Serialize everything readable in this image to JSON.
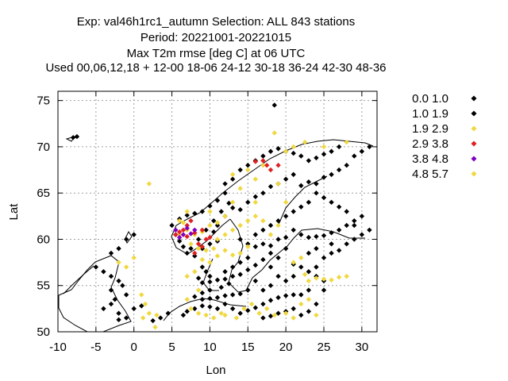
{
  "chart_data": {
    "type": "scatter",
    "title_lines": [
      "Exp: val46h1rc1_autumn   Selection: ALL    843 stations",
      "Period: 20221001-20221015",
      "Max T2m rmse [deg C] at  06 UTC",
      "Used  00,06,12,18  + 12-00 18-06 24-12 30-18 36-24 42-30 48-36"
    ],
    "xlabel": "Lon",
    "ylabel": "Lat",
    "xlim": [
      -10,
      32
    ],
    "ylim": [
      50,
      76
    ],
    "xticks": [
      -10,
      -5,
      0,
      5,
      10,
      15,
      20,
      25,
      30
    ],
    "yticks": [
      50,
      55,
      60,
      65,
      70,
      75
    ],
    "grid": true,
    "legend_position": "right",
    "series": [
      {
        "name": "0.0 1.0",
        "color": "#000000",
        "points": []
      },
      {
        "name": "1.0 1.9",
        "color": "#000000",
        "points": [
          [
            7,
            58.5
          ],
          [
            8,
            58.2
          ],
          [
            9,
            59
          ],
          [
            10,
            59.5
          ],
          [
            11,
            59.8
          ],
          [
            10.5,
            60.8
          ],
          [
            11,
            61.5
          ],
          [
            12,
            62.5
          ],
          [
            13,
            63.4
          ],
          [
            14,
            63.2
          ],
          [
            15,
            64
          ],
          [
            16,
            64.6
          ],
          [
            17,
            65
          ],
          [
            18,
            65.7
          ],
          [
            19,
            66
          ],
          [
            20,
            66.5
          ],
          [
            21,
            67
          ],
          [
            22,
            65.8
          ],
          [
            23,
            66.2
          ],
          [
            24,
            66
          ],
          [
            25,
            66.7
          ],
          [
            26,
            67
          ],
          [
            27,
            67.5
          ],
          [
            28,
            68
          ],
          [
            29,
            69
          ],
          [
            30,
            69.5
          ],
          [
            31,
            70
          ],
          [
            27,
            70
          ],
          [
            26,
            69.5
          ],
          [
            25,
            69.2
          ],
          [
            24,
            68.8
          ],
          [
            23,
            68.5
          ],
          [
            22,
            69
          ],
          [
            21,
            69.3
          ],
          [
            20,
            69.5
          ],
          [
            19,
            69.8
          ],
          [
            18,
            69.5
          ],
          [
            17,
            69
          ],
          [
            16,
            68.5
          ],
          [
            15,
            68
          ],
          [
            14,
            67.5
          ],
          [
            13,
            66.5
          ],
          [
            12,
            66
          ],
          [
            12,
            65
          ],
          [
            11,
            64.2
          ],
          [
            10,
            63.6
          ],
          [
            9,
            63
          ],
          [
            8,
            62.8
          ],
          [
            7,
            62.6
          ],
          [
            6,
            62.2
          ],
          [
            5,
            61.5
          ],
          [
            5.5,
            60.5
          ],
          [
            6,
            59.8
          ],
          [
            6.5,
            59.2
          ],
          [
            7.5,
            59
          ],
          [
            8.5,
            60
          ],
          [
            9.5,
            61
          ],
          [
            10.5,
            62
          ],
          [
            11.5,
            63
          ],
          [
            12.5,
            63.9
          ],
          [
            14,
            60
          ],
          [
            15,
            59.5
          ],
          [
            16,
            59.2
          ],
          [
            17,
            59.5
          ],
          [
            18,
            59.3
          ],
          [
            19,
            60
          ],
          [
            20,
            60.2
          ],
          [
            21,
            61
          ],
          [
            22,
            60.5
          ],
          [
            23,
            60.2
          ],
          [
            24,
            60.3
          ],
          [
            25,
            60.4
          ],
          [
            26,
            60.7
          ],
          [
            27,
            61
          ],
          [
            28,
            61.5
          ],
          [
            29,
            62
          ],
          [
            30,
            62.5
          ],
          [
            28,
            63
          ],
          [
            27,
            63.5
          ],
          [
            26,
            64
          ],
          [
            25,
            64.5
          ],
          [
            24,
            65
          ],
          [
            23,
            64
          ],
          [
            22,
            63.5
          ],
          [
            21,
            63
          ],
          [
            20,
            62.5
          ],
          [
            19,
            62
          ],
          [
            18,
            61.5
          ],
          [
            17,
            61
          ],
          [
            16,
            60.5
          ],
          [
            15,
            58
          ],
          [
            14,
            57.5
          ],
          [
            13,
            57
          ],
          [
            12,
            56.5
          ],
          [
            13,
            56
          ],
          [
            14,
            56.2
          ],
          [
            15,
            56.7
          ],
          [
            16,
            57.2
          ],
          [
            17,
            57.8
          ],
          [
            18,
            58.5
          ],
          [
            9,
            57
          ],
          [
            9.5,
            56.5
          ],
          [
            10,
            56
          ],
          [
            8.5,
            55.8
          ],
          [
            9,
            55.3
          ],
          [
            10,
            55.4
          ],
          [
            11,
            55.6
          ],
          [
            12,
            55.7
          ],
          [
            12.5,
            55.2
          ],
          [
            11.5,
            54.8
          ],
          [
            10,
            54.5
          ],
          [
            9,
            54.2
          ],
          [
            8,
            53.8
          ],
          [
            9,
            53.5
          ],
          [
            10,
            53.6
          ],
          [
            11,
            53.7
          ],
          [
            12,
            53.9
          ],
          [
            13,
            54
          ],
          [
            14,
            54.1
          ],
          [
            12,
            53
          ],
          [
            11,
            52.5
          ],
          [
            10,
            52.7
          ],
          [
            9,
            52.8
          ],
          [
            8,
            52.5
          ],
          [
            7,
            52.2
          ],
          [
            6.5,
            51.8
          ],
          [
            13,
            52.5
          ],
          [
            14,
            52
          ],
          [
            15,
            52.3
          ],
          [
            16,
            52.6
          ],
          [
            17,
            53
          ],
          [
            18,
            53.4
          ],
          [
            19,
            53.7
          ],
          [
            20,
            53.9
          ],
          [
            21,
            54
          ],
          [
            22,
            54
          ],
          [
            23,
            54.5
          ],
          [
            21,
            52.5
          ],
          [
            20,
            52.2
          ],
          [
            19,
            52
          ],
          [
            18,
            51.7
          ],
          [
            17,
            51.5
          ],
          [
            22,
            51.8
          ],
          [
            23,
            52.2
          ],
          [
            24,
            53
          ],
          [
            25,
            54.5
          ],
          [
            25,
            55.5
          ],
          [
            24,
            56
          ],
          [
            23,
            56.5
          ],
          [
            22,
            57
          ],
          [
            21,
            57.3
          ],
          [
            24,
            57
          ],
          [
            25,
            58
          ],
          [
            26,
            58.5
          ],
          [
            27,
            58.8
          ],
          [
            24,
            59
          ],
          [
            23,
            58.5
          ],
          [
            26,
            59.5
          ],
          [
            28,
            59.5
          ],
          [
            29,
            60
          ],
          [
            30,
            60.5
          ],
          [
            31,
            61
          ],
          [
            29,
            61.5
          ],
          [
            20,
            55.5
          ],
          [
            21,
            56
          ],
          [
            16,
            55.5
          ],
          [
            18,
            55
          ],
          [
            17,
            54.5
          ],
          [
            15,
            54.5
          ],
          [
            19,
            56
          ],
          [
            18,
            57
          ],
          [
            19,
            58
          ],
          [
            20,
            59
          ],
          [
            -8,
            71
          ],
          [
            -7.5,
            71.1
          ],
          [
            18.5,
            74.5
          ],
          [
            2.5,
            51.2
          ],
          [
            3.5,
            51.5
          ],
          [
            4.5,
            52
          ],
          [
            -1,
            60
          ],
          [
            0,
            60.5
          ],
          [
            -2,
            59
          ],
          [
            -3,
            58.5
          ],
          [
            -5,
            57
          ],
          [
            -4,
            56.5
          ],
          [
            -3,
            56
          ],
          [
            -2,
            55.5
          ],
          [
            -1.5,
            55
          ],
          [
            -3,
            54.5
          ],
          [
            -1,
            54
          ],
          [
            -2.5,
            53.5
          ],
          [
            -3,
            53
          ],
          [
            -4,
            52.5
          ],
          [
            -2,
            52
          ],
          [
            0,
            52.5
          ],
          [
            1,
            52.8
          ],
          [
            -1,
            51.5
          ],
          [
            -2,
            51.3
          ]
        ]
      },
      {
        "name": "1.9 2.9",
        "color": "#f0d840",
        "points": [
          [
            2,
            66
          ],
          [
            18.5,
            71.5
          ],
          [
            21,
            70
          ],
          [
            22.5,
            70.5
          ],
          [
            20,
            69.5
          ],
          [
            17,
            68
          ],
          [
            16,
            66.5
          ],
          [
            14,
            65.5
          ],
          [
            13,
            64
          ],
          [
            12,
            62.5
          ],
          [
            11,
            61.8
          ],
          [
            10,
            61.5
          ],
          [
            9,
            60.8
          ],
          [
            8,
            60.5
          ],
          [
            7,
            61
          ],
          [
            6.5,
            61.8
          ],
          [
            6,
            60.5
          ],
          [
            7.5,
            59.5
          ],
          [
            8.5,
            59
          ],
          [
            9.5,
            58.8
          ],
          [
            10.5,
            59
          ],
          [
            11,
            60
          ],
          [
            12,
            60.5
          ],
          [
            13,
            61
          ],
          [
            14,
            61.5
          ],
          [
            15,
            62
          ],
          [
            16,
            62.5
          ],
          [
            17,
            62
          ],
          [
            18,
            60.5
          ],
          [
            19,
            61.5
          ],
          [
            15,
            59.2
          ],
          [
            14,
            58.5
          ],
          [
            13,
            58.3
          ],
          [
            12,
            58.8
          ],
          [
            11,
            58.2
          ],
          [
            10,
            57.5
          ],
          [
            9,
            57.8
          ],
          [
            8,
            56.5
          ],
          [
            7,
            56
          ],
          [
            8.5,
            54.5
          ],
          [
            7,
            53.5
          ],
          [
            7.5,
            52.5
          ],
          [
            8.5,
            52
          ],
          [
            9.5,
            51.8
          ],
          [
            10.5,
            51.5
          ],
          [
            11.5,
            52
          ],
          [
            12,
            51.8
          ],
          [
            13.5,
            51.5
          ],
          [
            14.5,
            52.5
          ],
          [
            15.5,
            53
          ],
          [
            16.5,
            52
          ],
          [
            17.5,
            52.5
          ],
          [
            18.5,
            51.8
          ],
          [
            20,
            52
          ],
          [
            21,
            51.5
          ],
          [
            22,
            53
          ],
          [
            23,
            53.5
          ],
          [
            24,
            51.8
          ],
          [
            21,
            57.5
          ],
          [
            22,
            58
          ],
          [
            23,
            55.5
          ],
          [
            24,
            55.8
          ],
          [
            25,
            55.7
          ],
          [
            26,
            55.6
          ],
          [
            27,
            55.9
          ],
          [
            28,
            56
          ],
          [
            22.5,
            56.2
          ],
          [
            1,
            54
          ],
          [
            1.5,
            53
          ],
          [
            2,
            52
          ],
          [
            1.2,
            51.5
          ],
          [
            2.8,
            50.5
          ],
          [
            3,
            51.8
          ],
          [
            -1,
            57
          ],
          [
            0,
            58
          ],
          [
            -2,
            57.5
          ],
          [
            6,
            62
          ],
          [
            10,
            63
          ],
          [
            7,
            63
          ],
          [
            13,
            67
          ],
          [
            15,
            67.5
          ],
          [
            16,
            64
          ],
          [
            20,
            64
          ],
          [
            19,
            66
          ],
          [
            25,
            70
          ],
          [
            28,
            70.5
          ]
        ]
      },
      {
        "name": "2.9 3.8",
        "color": "#e02020",
        "points": [
          [
            5.5,
            60.5
          ],
          [
            6,
            60.8
          ],
          [
            6.5,
            61
          ],
          [
            7,
            60.3
          ],
          [
            8,
            60.7
          ],
          [
            9,
            61
          ],
          [
            8.5,
            59.5
          ],
          [
            9.5,
            60
          ],
          [
            7.5,
            62
          ],
          [
            8,
            58.5
          ],
          [
            17,
            68.5
          ],
          [
            17.5,
            68
          ],
          [
            18,
            67.5
          ],
          [
            19,
            68
          ],
          [
            16,
            68.4
          ],
          [
            7,
            61.5
          ],
          [
            10,
            60.2
          ],
          [
            9,
            59.2
          ]
        ]
      },
      {
        "name": "3.8 4.8",
        "color": "#8000c0",
        "points": [
          [
            5.5,
            61
          ],
          [
            6,
            60.2
          ],
          [
            6.5,
            60.5
          ],
          [
            7,
            61.2
          ],
          [
            8,
            61
          ],
          [
            7.5,
            60.6
          ]
        ]
      },
      {
        "name": "4.8 5.7",
        "color": "#f0d840",
        "points": []
      }
    ]
  }
}
